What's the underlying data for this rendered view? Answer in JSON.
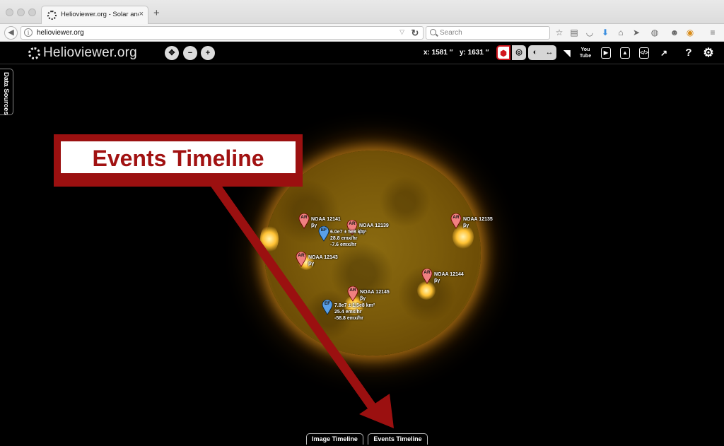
{
  "browser": {
    "tab_title": "Helioviewer.org - Solar and ...",
    "tab_close": "×",
    "new_tab": "+",
    "url": "helioviewer.org",
    "search_placeholder": "Search"
  },
  "app": {
    "logo_text": "Helioviewer.org",
    "coordinates": {
      "x_label": "x: 1581 ′′",
      "y_label": "y: 1631 ′′"
    },
    "data_sources_label": "Data Sources",
    "buttons": {
      "youtube": "You Tube",
      "help": "?"
    }
  },
  "events": [
    {
      "type": "AR",
      "color": "#f08080",
      "name": "NOAA 12141",
      "detail": "βγ"
    },
    {
      "type": "AR",
      "color": "#f08080",
      "name": "NOAA 12139",
      "detail": "βγ"
    },
    {
      "type": "AR",
      "color": "#f08080",
      "name": "NOAA 12135",
      "detail": "βγ"
    },
    {
      "type": "AR",
      "color": "#f08080",
      "name": "NOAA 12143",
      "detail": "βγ"
    },
    {
      "type": "AR",
      "color": "#f08080",
      "name": "NOAA 12144",
      "detail": "βγ"
    },
    {
      "type": "AR",
      "color": "#f08080",
      "name": "NOAA 12145",
      "detail": "βγ"
    },
    {
      "type": "EF",
      "color": "#5aa0e8",
      "lines": [
        "6.0e7 ± 5e8 km²",
        "28.8 emx/hr",
        "-7.6 emx/hr"
      ]
    },
    {
      "type": "EF",
      "color": "#5aa0e8",
      "lines": [
        "7.8e7 ± 1.5e8 km²",
        "25.4 emx/hr",
        "-58.8 emx/hr"
      ]
    }
  ],
  "annotation": {
    "label": "Events Timeline",
    "color": "#9b1010"
  },
  "timeline": {
    "image_tab": "Image Timeline",
    "events_tab": "Events Timeline"
  }
}
